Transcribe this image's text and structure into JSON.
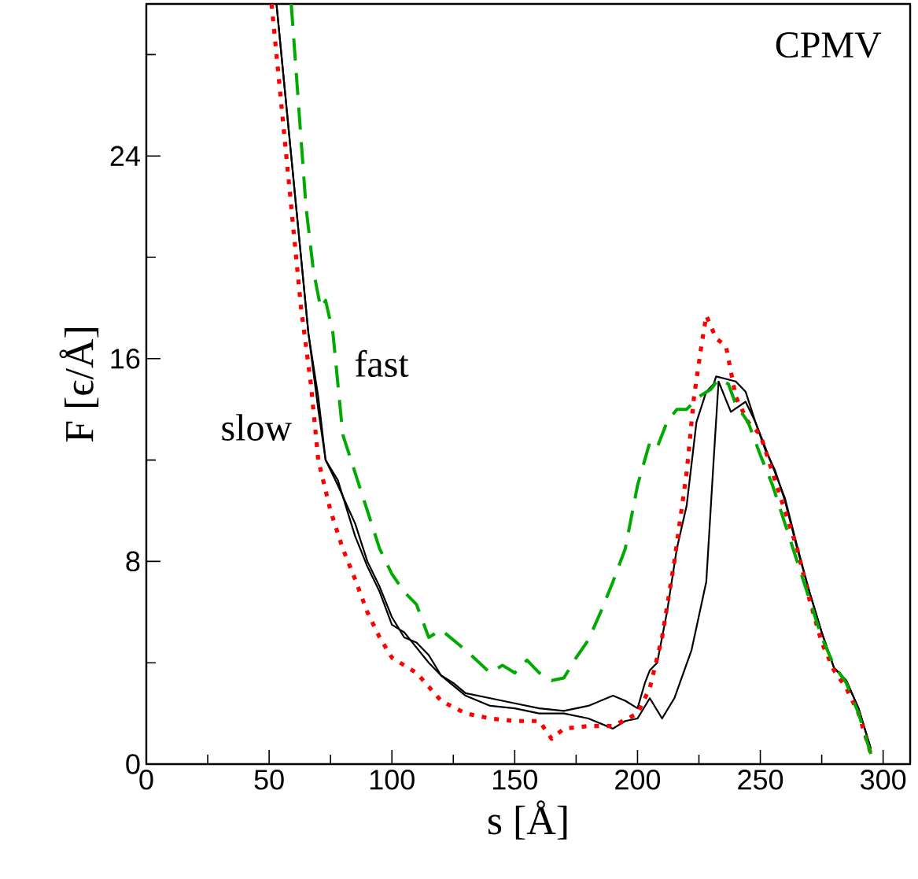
{
  "chart_data": {
    "type": "line",
    "xlabel": "s [Å]",
    "ylabel": "F [ϵ/Å]",
    "xlim": [
      0,
      311
    ],
    "ylim": [
      0,
      30
    ],
    "xticks": [
      0,
      {
        "value": 25,
        "label": null
      },
      50,
      {
        "value": 75,
        "label": null
      },
      100,
      {
        "value": 125,
        "label": null
      },
      150,
      {
        "value": 175,
        "label": null
      },
      200,
      {
        "value": 225,
        "label": null
      },
      250,
      {
        "value": 275,
        "label": null
      },
      300
    ],
    "yticks": [
      0,
      {
        "value": 4,
        "label": null
      },
      8,
      {
        "value": 12,
        "label": null
      },
      16,
      {
        "value": 20,
        "label": null
      },
      24,
      {
        "value": 28,
        "label": null
      }
    ],
    "annotations": [
      "CPMV",
      "slow",
      "fast"
    ],
    "series": [
      {
        "color": "#000000",
        "line_style": "solid",
        "x": [
          53,
          56,
          60,
          63,
          66,
          70,
          73,
          78,
          85,
          90,
          95,
          100,
          105,
          110,
          115,
          120,
          125,
          130,
          140,
          150,
          160,
          170,
          180,
          190,
          195,
          200,
          203,
          205,
          208,
          212,
          216,
          220,
          224,
          228,
          231,
          232,
          236,
          240,
          244,
          248,
          252,
          256,
          260,
          265,
          270,
          275,
          280,
          285,
          290,
          295
        ],
        "values": [
          30,
          27,
          23,
          20,
          17,
          14.5,
          12,
          11,
          9.5,
          8,
          7,
          5.8,
          5,
          4.8,
          4.3,
          3.5,
          3.2,
          2.8,
          2.6,
          2.4,
          2.2,
          2.1,
          2.3,
          2.7,
          2.5,
          2.2,
          3.2,
          3.7,
          4,
          6,
          8.5,
          10.2,
          13.5,
          14.7,
          15,
          15.3,
          15.2,
          15.1,
          14.7,
          13.5,
          12.5,
          11.5,
          10.5,
          8.6,
          6.8,
          5.2,
          3.8,
          3.3,
          2.2,
          0.6
        ]
      },
      {
        "color": "#000000",
        "line_style": "solid",
        "x": [
          53,
          56,
          60,
          63,
          66,
          70,
          73,
          78,
          85,
          90,
          95,
          100,
          105,
          110,
          115,
          120,
          130,
          140,
          150,
          160,
          170,
          180,
          190,
          195,
          200,
          205,
          210,
          215,
          222,
          228,
          231,
          233,
          238,
          244,
          248,
          252,
          256,
          260,
          265,
          270,
          275,
          280,
          285,
          290,
          295
        ],
        "values": [
          30,
          27,
          23,
          20,
          17,
          14,
          12,
          11.2,
          9,
          7.8,
          6.8,
          5.5,
          5.2,
          4.6,
          4,
          3.5,
          2.7,
          2.3,
          2.2,
          2,
          2,
          1.8,
          1.4,
          1.7,
          1.8,
          2.6,
          1.8,
          2.6,
          4.5,
          7.2,
          12,
          15.1,
          13.9,
          14.3,
          13.5,
          12.4,
          11.6,
          10.4,
          8.5,
          6.8,
          5.2,
          3.8,
          3.3,
          2.2,
          0.6
        ]
      },
      {
        "color": "#ff0000",
        "line_style": "dotted",
        "x": [
          51,
          55,
          60,
          63,
          67,
          70,
          75,
          80,
          85,
          90,
          95,
          100,
          110,
          120,
          130,
          140,
          150,
          160,
          165,
          170,
          180,
          190,
          200,
          205,
          210,
          215,
          220,
          223,
          226,
          228,
          232,
          236,
          240,
          245,
          250,
          255,
          260,
          265,
          270,
          275,
          280,
          285,
          290,
          295
        ],
        "values": [
          30,
          26,
          21,
          18,
          15,
          12,
          10,
          8.5,
          7.3,
          6,
          5,
          4.2,
          3.6,
          2.5,
          2,
          1.8,
          1.7,
          1.7,
          1,
          1.4,
          1.5,
          1.5,
          2,
          3,
          5,
          8,
          11.5,
          14.5,
          16.5,
          17.7,
          16.8,
          16.5,
          14.5,
          13.5,
          13,
          11.5,
          10,
          8.5,
          6.5,
          4.8,
          3.7,
          3,
          2,
          0.4
        ]
      },
      {
        "color": "#00aa00",
        "line_style": "dashed",
        "x": [
          59,
          62,
          65,
          68,
          71,
          73,
          76,
          78,
          80,
          85,
          90,
          95,
          100,
          105,
          110,
          115,
          120,
          130,
          140,
          145,
          150,
          155,
          160,
          165,
          170,
          175,
          180,
          185,
          190,
          195,
          200,
          205,
          208,
          212,
          216,
          220,
          225,
          230,
          233,
          237,
          240,
          245,
          250,
          255,
          260,
          265,
          270,
          275,
          280,
          285,
          290,
          295
        ],
        "values": [
          30,
          26,
          22,
          19.5,
          18,
          18.3,
          17,
          15,
          13,
          11.5,
          10,
          8.5,
          7.5,
          6.8,
          6.3,
          5,
          5.3,
          4.5,
          3.6,
          3.9,
          3.6,
          4.1,
          3.6,
          3.3,
          3.4,
          4.2,
          4.9,
          6,
          7.2,
          8.5,
          11,
          12.7,
          12.5,
          13.5,
          14,
          14,
          14.5,
          14.8,
          15.2,
          15,
          14.2,
          13.5,
          12.2,
          11,
          9.5,
          8,
          6.5,
          5,
          3.9,
          3.2,
          2,
          0.4
        ]
      }
    ]
  }
}
